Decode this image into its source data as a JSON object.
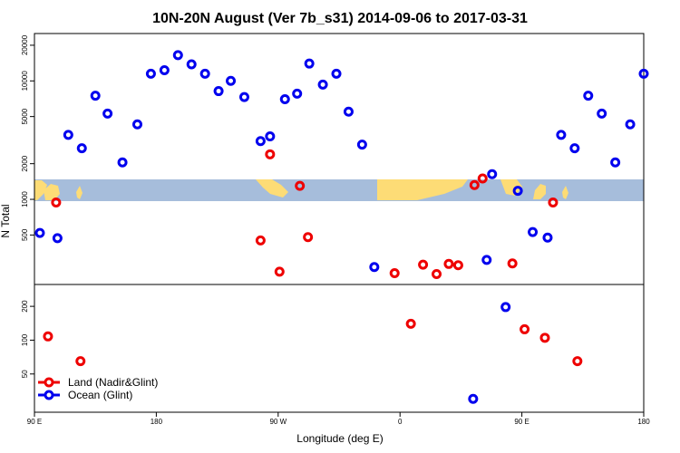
{
  "chart_data": {
    "type": "scatter",
    "title": "10N-20N August (Ver 7b_s31)   2014-09-06 to 2017-03-31",
    "xlabel": "Longitude (deg E)",
    "ylabel": "N Total",
    "x_ticks": [
      {
        "value": 90,
        "label": "90 E"
      },
      {
        "value": 180,
        "label": "180"
      },
      {
        "value": 270,
        "label": "90 W"
      },
      {
        "value": 360,
        "label": "0"
      },
      {
        "value": 450,
        "label": "90 E"
      },
      {
        "value": 540,
        "label": "180"
      }
    ],
    "xlim": [
      90,
      540
    ],
    "upper_panel": {
      "scale": "log",
      "ylim": [
        220,
        23000
      ],
      "y_ticks": [
        {
          "value": 500,
          "label": "500"
        },
        {
          "value": 1000,
          "label": "1000"
        },
        {
          "value": 2000,
          "label": "2000"
        },
        {
          "value": 5000,
          "label": "5000"
        },
        {
          "value": 10000,
          "label": "10000"
        },
        {
          "value": 20000,
          "label": "20000"
        }
      ]
    },
    "lower_panel": {
      "scale": "log",
      "ylim": [
        26,
        280
      ],
      "y_ticks": [
        {
          "value": 50,
          "label": "50"
        },
        {
          "value": 100,
          "label": "100"
        },
        {
          "value": 200,
          "label": "200"
        }
      ]
    },
    "series": [
      {
        "name": "Land (Nadir&Glint)",
        "color": "#ee0000",
        "points": [
          {
            "x": 100,
            "y": 108
          },
          {
            "x": 106,
            "y": 940
          },
          {
            "x": 124,
            "y": 65
          },
          {
            "x": 257,
            "y": 450
          },
          {
            "x": 264,
            "y": 2400
          },
          {
            "x": 271,
            "y": 245
          },
          {
            "x": 286,
            "y": 1300
          },
          {
            "x": 292,
            "y": 480
          },
          {
            "x": 356,
            "y": 238
          },
          {
            "x": 387,
            "y": 234
          },
          {
            "x": 368,
            "y": 140
          },
          {
            "x": 377,
            "y": 281
          },
          {
            "x": 396,
            "y": 285
          },
          {
            "x": 403,
            "y": 278
          },
          {
            "x": 415,
            "y": 1320
          },
          {
            "x": 421,
            "y": 1500
          },
          {
            "x": 443,
            "y": 288
          },
          {
            "x": 452,
            "y": 125
          },
          {
            "x": 467,
            "y": 105
          },
          {
            "x": 473,
            "y": 940
          },
          {
            "x": 491,
            "y": 65
          }
        ]
      },
      {
        "name": "Ocean (Glint)",
        "color": "#0000ee",
        "points": [
          {
            "x": 94,
            "y": 520
          },
          {
            "x": 107,
            "y": 470
          },
          {
            "x": 115,
            "y": 3500
          },
          {
            "x": 125,
            "y": 2700
          },
          {
            "x": 135,
            "y": 7500
          },
          {
            "x": 144,
            "y": 5300
          },
          {
            "x": 155,
            "y": 2050
          },
          {
            "x": 166,
            "y": 4300
          },
          {
            "x": 176,
            "y": 11500
          },
          {
            "x": 186,
            "y": 12300
          },
          {
            "x": 196,
            "y": 16500
          },
          {
            "x": 206,
            "y": 13800
          },
          {
            "x": 216,
            "y": 11500
          },
          {
            "x": 226,
            "y": 8200
          },
          {
            "x": 235,
            "y": 10000
          },
          {
            "x": 245,
            "y": 7300
          },
          {
            "x": 257,
            "y": 3100
          },
          {
            "x": 264,
            "y": 3400
          },
          {
            "x": 275,
            "y": 7000
          },
          {
            "x": 284,
            "y": 7800
          },
          {
            "x": 293,
            "y": 14000
          },
          {
            "x": 303,
            "y": 9300
          },
          {
            "x": 313,
            "y": 11500
          },
          {
            "x": 322,
            "y": 5500
          },
          {
            "x": 332,
            "y": 2900
          },
          {
            "x": 341,
            "y": 268
          },
          {
            "x": 414,
            "y": 30
          },
          {
            "x": 424,
            "y": 308
          },
          {
            "x": 428,
            "y": 1630
          },
          {
            "x": 438,
            "y": 197
          },
          {
            "x": 447,
            "y": 1180
          },
          {
            "x": 458,
            "y": 530
          },
          {
            "x": 469,
            "y": 475
          },
          {
            "x": 479,
            "y": 3500
          },
          {
            "x": 489,
            "y": 2700
          },
          {
            "x": 499,
            "y": 7500
          },
          {
            "x": 509,
            "y": 5300
          },
          {
            "x": 519,
            "y": 2050
          },
          {
            "x": 530,
            "y": 4300
          },
          {
            "x": 540,
            "y": 11500
          }
        ]
      }
    ],
    "legend": {
      "position": "bottom-left",
      "entries": [
        "Land (Nadir&Glint)",
        "Ocean (Glint)"
      ]
    },
    "colors": {
      "map_ocean": "#a6bddb",
      "map_land": "#fddc76"
    },
    "grid": false
  }
}
